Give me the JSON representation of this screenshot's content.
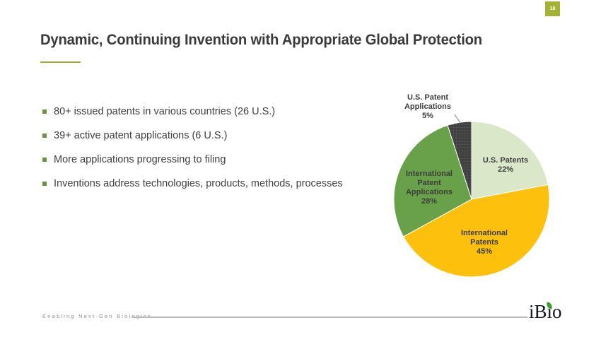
{
  "slide": {
    "page_number": "18",
    "title": "Dynamic, Continuing Invention with Appropriate Global Protection",
    "bullets": [
      "80+ issued patents in various countries (26 U.S.)",
      "39+ active patent applications (6 U.S.)",
      "More applications progressing to filing",
      "Inventions address technologies, products, methods, processes"
    ],
    "footer": {
      "tagline": "Enabling Next-Gen Biologics",
      "logo_text": "iBio"
    },
    "colors": {
      "accent_green": "#a6aa2c",
      "badge_green": "#a5b233",
      "bullet_green": "#6e9140",
      "text_dark": "#3a3a3a",
      "leaf_green": "#3f9b31"
    }
  },
  "chart_data": {
    "type": "pie",
    "title": "",
    "legend": "none",
    "start_angle_deg": 0,
    "direction": "clockwise",
    "slices": [
      {
        "label": "U.S. Patents",
        "value": 22,
        "pct": "22%",
        "color": "#dbe7c9",
        "pattern": "none",
        "label_position": "inside"
      },
      {
        "label": "International Patents",
        "value": 45,
        "pct": "45%",
        "color": "#fdc10d",
        "pattern": "none",
        "label_position": "inside"
      },
      {
        "label": "International Patent Applications",
        "value": 28,
        "pct": "28%",
        "color": "#69a14a",
        "pattern": "none",
        "label_position": "inside"
      },
      {
        "label": "U.S. Patent Applications",
        "value": 5,
        "pct": "5%",
        "color": "#3f3f3f",
        "pattern": "grid",
        "label_position": "outside-callout"
      }
    ]
  }
}
